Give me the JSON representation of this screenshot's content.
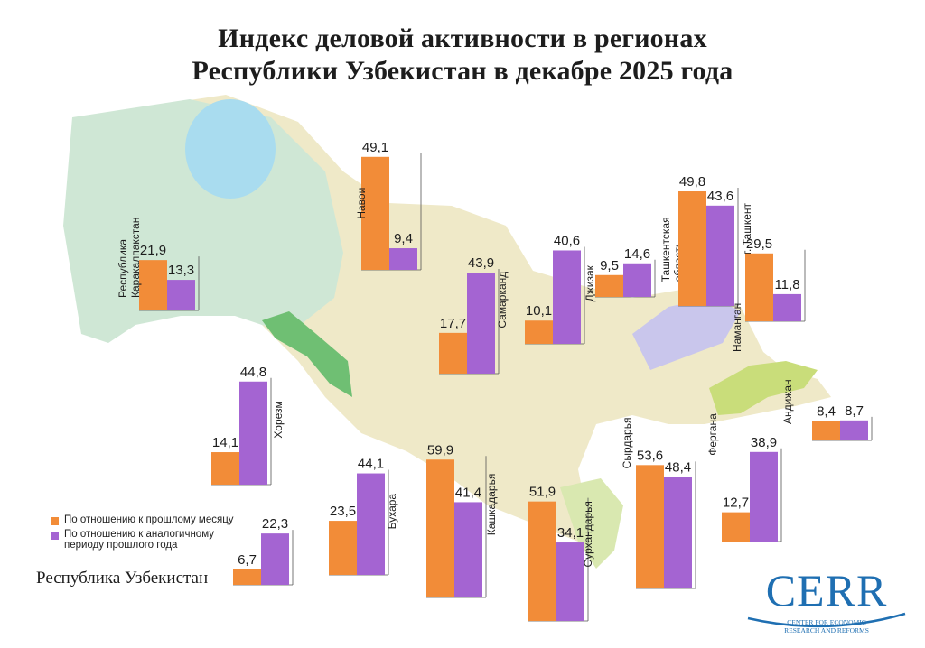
{
  "title_line1": "Индекс деловой активности в регионах",
  "title_line2": "Республики Узбекистан в декабре 2025 года",
  "colors": {
    "mom": "#f28c38",
    "yoy": "#a464d2",
    "map_land": "#efe9c8",
    "map_west": "#cfe7d5",
    "water": "#a9dcef",
    "logo": "#1f6fb2"
  },
  "legend": {
    "mom": "По отношению к прошлому месяцу",
    "yoy_line1": "По отношению к аналогичному",
    "yoy_line2": "периоду прошлого года"
  },
  "republic_label": "Республика Узбекистан",
  "logo": {
    "wordmark": "CERR",
    "line1": "CENTER FOR ECONOMIC",
    "line2": "RESEARCH AND REFORMS"
  },
  "chart_data": {
    "type": "bar",
    "title": "Индекс деловой активности в регионах Республики Узбекистан в декабре 2025 года",
    "series": [
      {
        "name": "По отношению к прошлому месяцу",
        "color": "#f28c38",
        "values": [
          21.9,
          49.1,
          14.1,
          23.5,
          59.9,
          17.7,
          51.9,
          10.1,
          53.6,
          9.5,
          49.8,
          29.5,
          12.7,
          8.4,
          6.7
        ]
      },
      {
        "name": "По отношению к аналогичному периоду прошлого года",
        "color": "#a464d2",
        "values": [
          13.3,
          9.4,
          44.8,
          44.1,
          41.4,
          43.9,
          34.1,
          40.6,
          48.4,
          14.6,
          43.6,
          11.8,
          38.9,
          8.7,
          22.3
        ]
      }
    ],
    "categories": [
      "Республика Каракалпакстан",
      "Навои",
      "Хорезм",
      "Бухара",
      "Кашкадарья",
      "Самарканд",
      "Сурхандарья",
      "Джизак",
      "Сырдарья",
      "Ташкентская область",
      "г. Ташкент",
      "Наманган",
      "Фергана",
      "Андижан",
      "Республика Узбекистан"
    ],
    "value_labels": [
      [
        "21,9",
        "13,3"
      ],
      [
        "49,1",
        "9,4"
      ],
      [
        "14,1",
        "44,8"
      ],
      [
        "23,5",
        "44,1"
      ],
      [
        "59,9",
        "41,4"
      ],
      [
        "17,7",
        "43,9"
      ],
      [
        "51,9",
        "34,1"
      ],
      [
        "10,1",
        "40,6"
      ],
      [
        "53,6",
        "48,4"
      ],
      [
        "9,5",
        "14,6"
      ],
      [
        "49,8",
        "43,6"
      ],
      [
        "29,5",
        "11,8"
      ],
      [
        "12,7",
        "38,9"
      ],
      [
        "8,4",
        "8,7"
      ],
      [
        "6,7",
        "22,3"
      ]
    ],
    "region_label_lines": [
      [
        "Республика",
        "Каракалпакстан"
      ],
      [
        "Навои"
      ],
      [
        "Хорезм"
      ],
      [
        "Бухара"
      ],
      [
        "Кашкадарья"
      ],
      [
        "Самарканд"
      ],
      [
        "Сурхандарья"
      ],
      [
        "Джизак"
      ],
      [
        "Сырдарья"
      ],
      [
        "Ташкентская",
        "область"
      ],
      [
        "г. Ташкент"
      ],
      [
        "Наманган"
      ],
      [
        "Фергана"
      ],
      [
        "Андижан"
      ],
      []
    ],
    "legend_position": "bottom-left",
    "grid": false
  }
}
